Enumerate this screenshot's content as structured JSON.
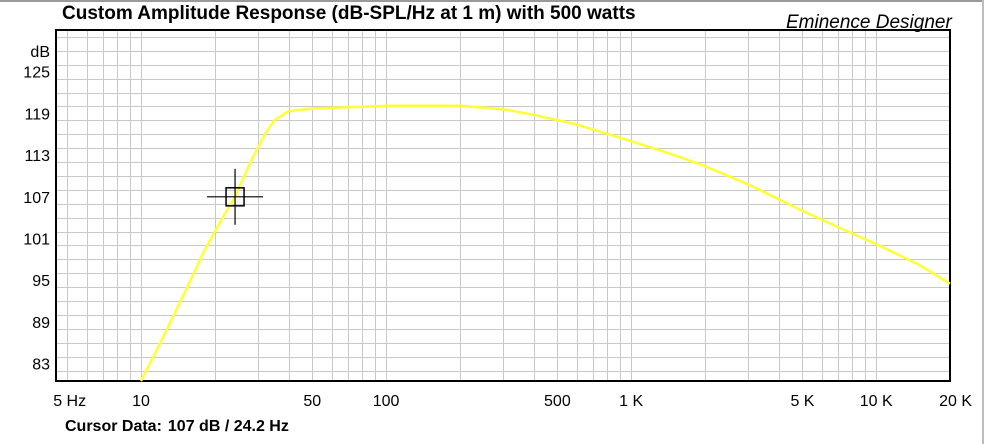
{
  "chart_data": {
    "type": "line",
    "title": "Custom Amplitude Response (dB-SPL/Hz at 1 m) with 500 watts",
    "watermark": "Eminence Designer",
    "ylabel": "dB",
    "xlabel": "",
    "x_scale": "log",
    "xlim": [
      4.5,
      20000
    ],
    "ylim": [
      80.5,
      131
    ],
    "grid": true,
    "y_ticks": [
      {
        "value": 83,
        "label": "83"
      },
      {
        "value": 89,
        "label": "89"
      },
      {
        "value": 95,
        "label": "95"
      },
      {
        "value": 101,
        "label": "101"
      },
      {
        "value": 107,
        "label": "107"
      },
      {
        "value": 113,
        "label": "113"
      },
      {
        "value": 119,
        "label": "119"
      },
      {
        "value": 125,
        "label": "125"
      }
    ],
    "x_ticks": [
      {
        "value": 5,
        "label": "5 Hz"
      },
      {
        "value": 10,
        "label": "10"
      },
      {
        "value": 50,
        "label": "50"
      },
      {
        "value": 100,
        "label": "100"
      },
      {
        "value": 500,
        "label": "500"
      },
      {
        "value": 1000,
        "label": "1 K"
      },
      {
        "value": 5000,
        "label": "5 K"
      },
      {
        "value": 10000,
        "label": "10 K"
      },
      {
        "value": 20000,
        "label": "20 K"
      }
    ],
    "series": [
      {
        "color": "#ffff33",
        "x": [
          10,
          12,
          15,
          18,
          20,
          24.2,
          28,
          32,
          35,
          40,
          50,
          70,
          100,
          150,
          200,
          300,
          400,
          600,
          1000,
          1500,
          2000,
          3000,
          5000,
          8000,
          10000,
          15000,
          20000
        ],
        "y": [
          80.5,
          86,
          93,
          99,
          102,
          107,
          112,
          116,
          118,
          119.3,
          119.7,
          119.9,
          120.1,
          120.1,
          120.1,
          119.6,
          118.8,
          117.4,
          115,
          113,
          111.4,
          108.8,
          105,
          101.7,
          100.2,
          97.2,
          94.5
        ]
      }
    ],
    "cursor": {
      "x": 24.2,
      "y": 107
    }
  },
  "cursor_readout": {
    "label": "Cursor Data:",
    "value": "107 dB / 24.2 Hz"
  }
}
